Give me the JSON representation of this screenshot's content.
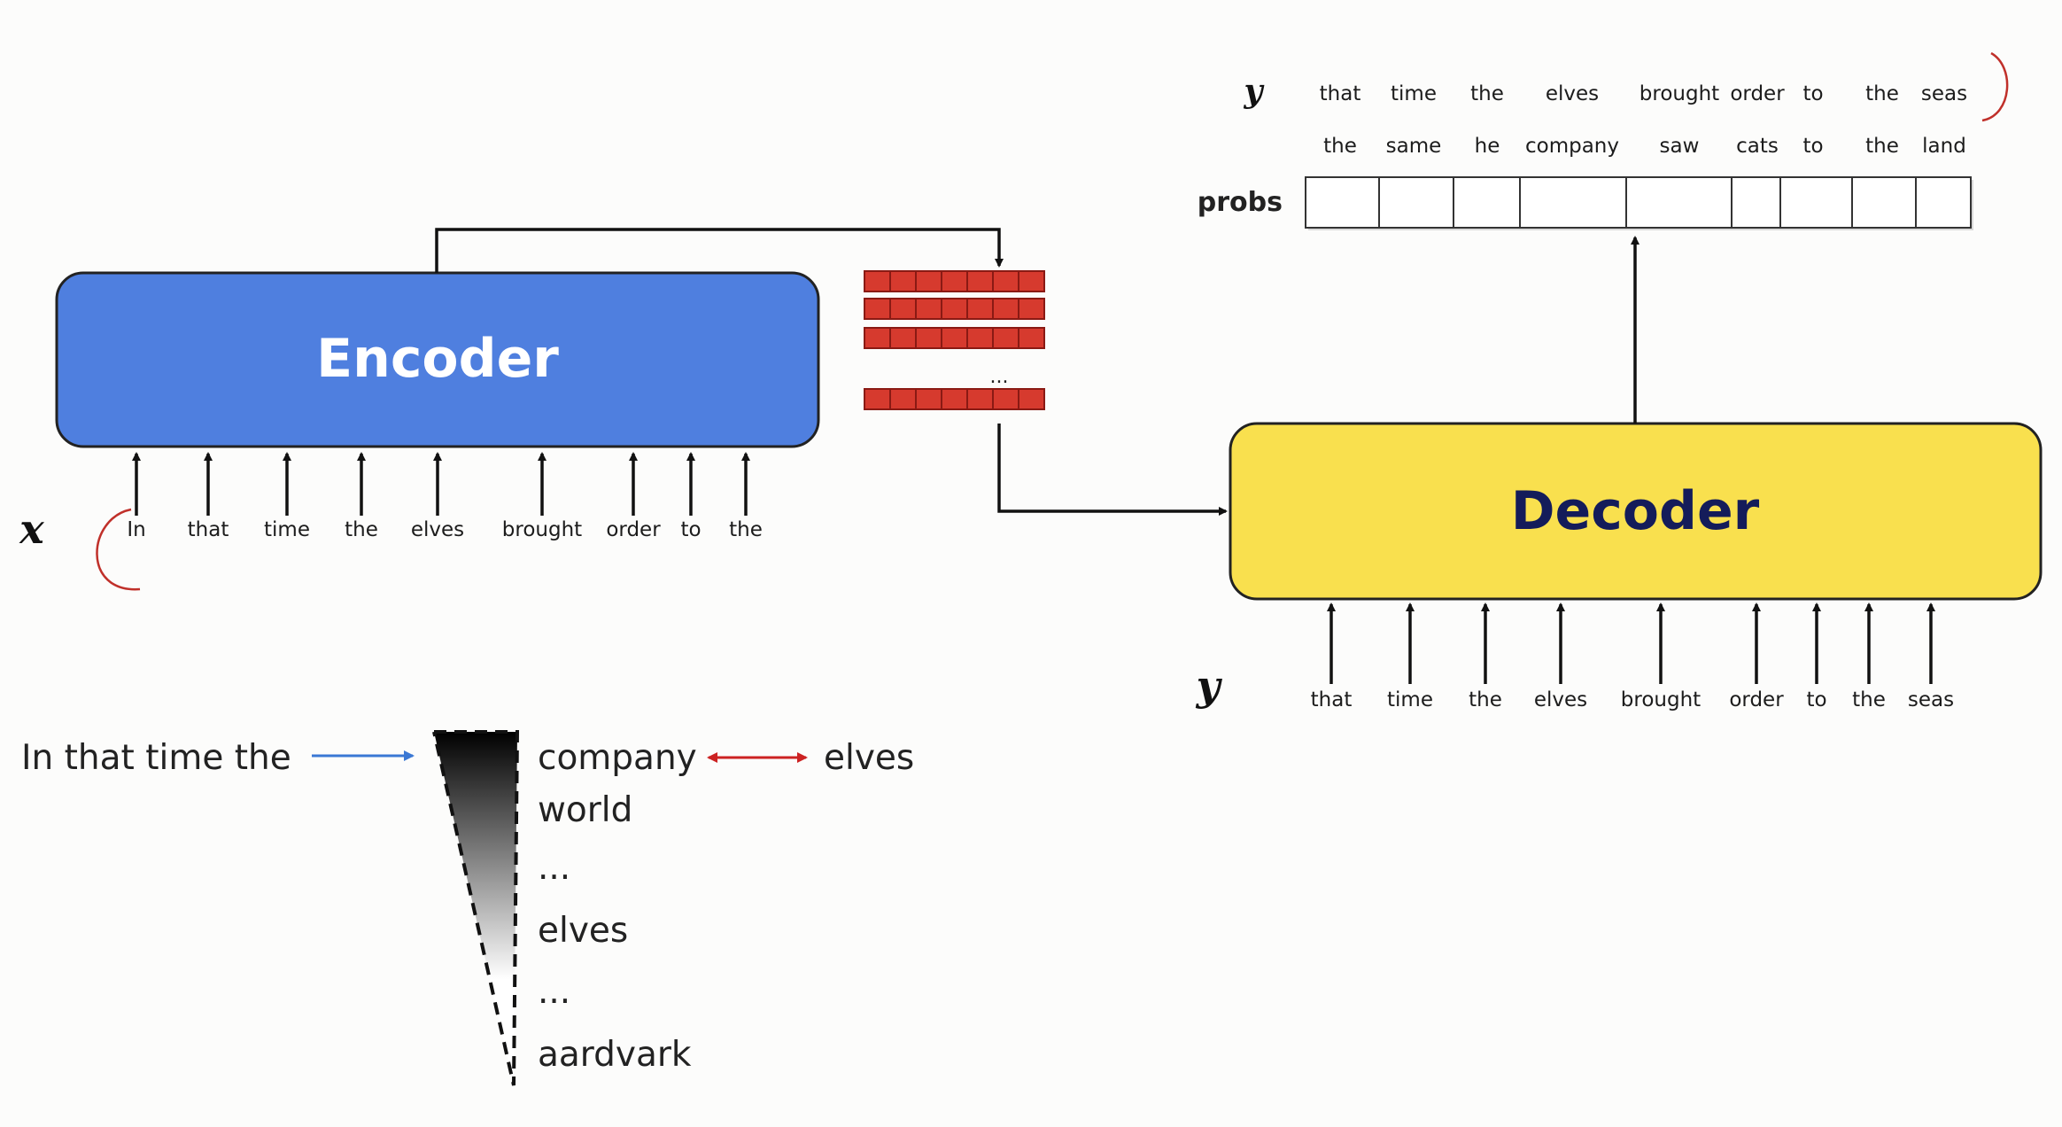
{
  "encoder": {
    "label": "Encoder",
    "color": "#4f7fdf"
  },
  "decoder": {
    "label": "Decoder",
    "color": "#f9e04e"
  },
  "hidden_state_ellipsis": "...",
  "x_label": "x",
  "x_tokens": [
    "In",
    "that",
    "time",
    "the",
    "elves",
    "brought",
    "order",
    "to",
    "the"
  ],
  "y_label": "y",
  "decoder_input_tokens": [
    "that",
    "time",
    "the",
    "elves",
    "brought",
    "order",
    "to",
    "the",
    "seas"
  ],
  "output_y_label": "y",
  "output_targets": [
    "that",
    "time",
    "the",
    "elves",
    "brought",
    "order",
    "to",
    "the",
    "seas"
  ],
  "output_predictions": [
    "the",
    "same",
    "he",
    "company",
    "saw",
    "cats",
    "to",
    "the",
    "land"
  ],
  "probs_label": "probs",
  "distribution": {
    "context": "In that time the",
    "ranked_words": [
      "company",
      "world",
      "...",
      "elves",
      "...",
      "aardvark"
    ],
    "compare_word": "elves"
  },
  "colors": {
    "state_cells": "#d63a2e",
    "context_arrow": "#3a78d4",
    "compare_arrow": "#cc2222",
    "annotation": "#c0302a"
  }
}
